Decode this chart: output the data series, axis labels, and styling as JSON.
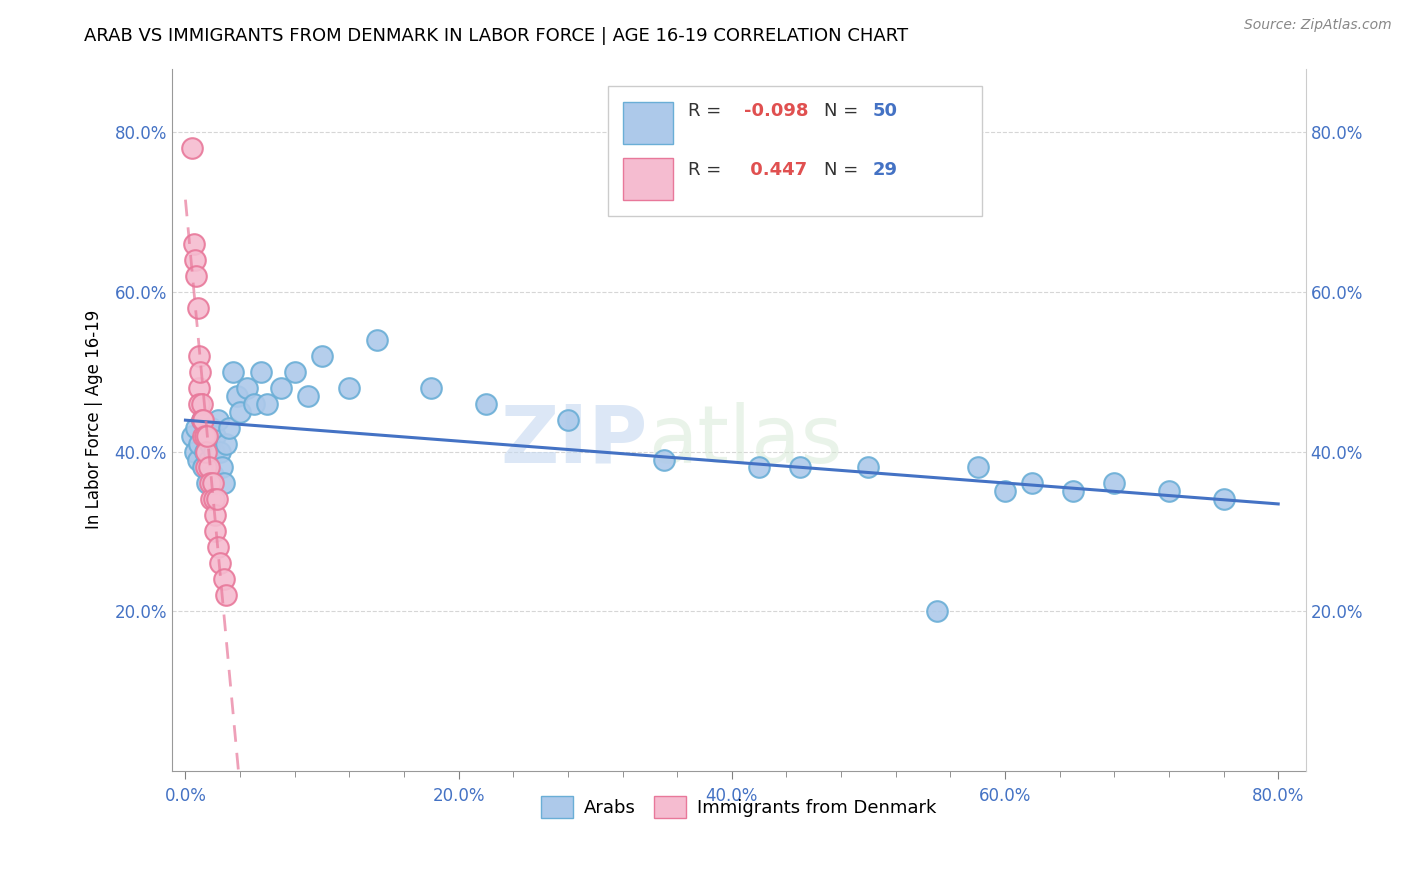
{
  "title": "ARAB VS IMMIGRANTS FROM DENMARK IN LABOR FORCE | AGE 16-19 CORRELATION CHART",
  "source": "Source: ZipAtlas.com",
  "ylabel": "In Labor Force | Age 16-19",
  "xlim": [
    -0.01,
    0.82
  ],
  "ylim": [
    0.0,
    0.88
  ],
  "xticks": [
    0.0,
    0.2,
    0.4,
    0.6,
    0.8
  ],
  "xticklabels": [
    "0.0%",
    "20.0%",
    "40.0%",
    "60.0%",
    "80.0%"
  ],
  "yticks": [
    0.2,
    0.4,
    0.6,
    0.8
  ],
  "yticklabels": [
    "20.0%",
    "40.0%",
    "60.0%",
    "80.0%"
  ],
  "watermark_zip": "ZIP",
  "watermark_atlas": "atlas",
  "arab_color": "#adc9ea",
  "denmark_color": "#f5bcd0",
  "arab_edge": "#6aaed6",
  "denmark_edge": "#e8789a",
  "trendline_arab_color": "#4472c4",
  "trendline_denmark_color": "#e8789a",
  "background_color": "#ffffff",
  "legend_label_arab": "Arabs",
  "legend_label_denmark": "Immigrants from Denmark",
  "arab_x": [
    0.005,
    0.007,
    0.008,
    0.009,
    0.01,
    0.012,
    0.013,
    0.014,
    0.015,
    0.016,
    0.017,
    0.018,
    0.019,
    0.02,
    0.021,
    0.022,
    0.024,
    0.025,
    0.027,
    0.028,
    0.03,
    0.032,
    0.035,
    0.038,
    0.04,
    0.045,
    0.05,
    0.055,
    0.06,
    0.07,
    0.08,
    0.09,
    0.1,
    0.12,
    0.14,
    0.18,
    0.22,
    0.28,
    0.35,
    0.42,
    0.45,
    0.5,
    0.55,
    0.58,
    0.6,
    0.62,
    0.65,
    0.68,
    0.72,
    0.76
  ],
  "arab_y": [
    0.42,
    0.4,
    0.43,
    0.39,
    0.41,
    0.44,
    0.38,
    0.4,
    0.42,
    0.36,
    0.39,
    0.41,
    0.43,
    0.37,
    0.4,
    0.42,
    0.44,
    0.4,
    0.38,
    0.36,
    0.41,
    0.43,
    0.5,
    0.47,
    0.45,
    0.48,
    0.46,
    0.5,
    0.46,
    0.48,
    0.5,
    0.47,
    0.52,
    0.48,
    0.54,
    0.48,
    0.46,
    0.44,
    0.39,
    0.38,
    0.38,
    0.38,
    0.2,
    0.38,
    0.35,
    0.36,
    0.35,
    0.36,
    0.35,
    0.34
  ],
  "denmark_x": [
    0.005,
    0.006,
    0.007,
    0.008,
    0.009,
    0.01,
    0.01,
    0.01,
    0.011,
    0.012,
    0.012,
    0.013,
    0.013,
    0.014,
    0.015,
    0.015,
    0.016,
    0.017,
    0.018,
    0.019,
    0.02,
    0.021,
    0.022,
    0.022,
    0.023,
    0.024,
    0.025,
    0.028,
    0.03
  ],
  "denmark_y": [
    0.78,
    0.66,
    0.64,
    0.62,
    0.58,
    0.52,
    0.48,
    0.46,
    0.5,
    0.46,
    0.44,
    0.42,
    0.44,
    0.42,
    0.38,
    0.4,
    0.42,
    0.38,
    0.36,
    0.34,
    0.36,
    0.34,
    0.32,
    0.3,
    0.34,
    0.28,
    0.26,
    0.24,
    0.22
  ]
}
